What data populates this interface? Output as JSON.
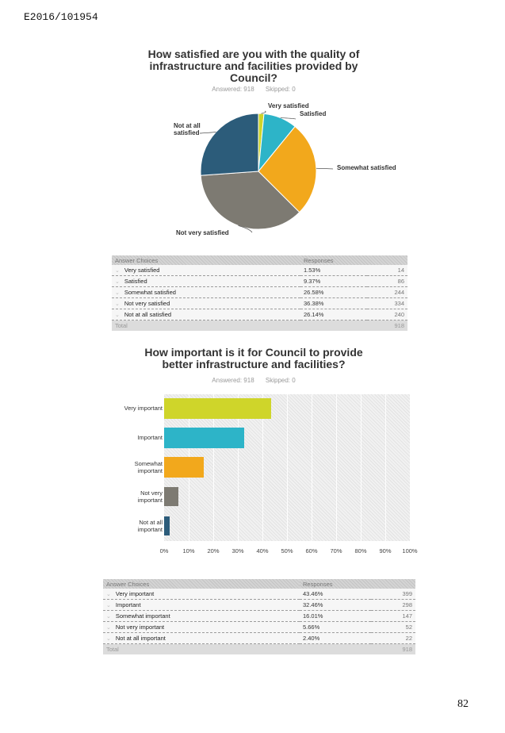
{
  "header": {
    "reference": "E2016/101954"
  },
  "footer": {
    "page_number": "82"
  },
  "q1": {
    "title_lines": [
      "How satisfied are you with the quality of",
      "infrastructure and facilities provided by",
      "Council?"
    ],
    "answered": "Answered: 918",
    "skipped": "Skipped: 0",
    "table": {
      "headers": [
        "Answer Choices",
        "Responses"
      ],
      "rows": [
        {
          "label": "Very satisfied",
          "pct": "1.53%",
          "count": "14"
        },
        {
          "label": "Satisfied",
          "pct": "9.37%",
          "count": "86"
        },
        {
          "label": "Somewhat satisfied",
          "pct": "26.58%",
          "count": "244"
        },
        {
          "label": "Not very satisfied",
          "pct": "36.38%",
          "count": "334"
        },
        {
          "label": "Not at all satisfied",
          "pct": "26.14%",
          "count": "240"
        }
      ],
      "total_label": "Total",
      "total_count": "918"
    }
  },
  "q2": {
    "title_lines": [
      "How important is it for Council to provide",
      "better infrastructure and facilities?"
    ],
    "answered": "Answered: 918",
    "skipped": "Skipped: 0",
    "table": {
      "headers": [
        "Answer Choices",
        "Responses"
      ],
      "rows": [
        {
          "label": "Very important",
          "pct": "43.46%",
          "count": "399"
        },
        {
          "label": "Important",
          "pct": "32.46%",
          "count": "298"
        },
        {
          "label": "Somewhat important",
          "pct": "16.01%",
          "count": "147"
        },
        {
          "label": "Not very important",
          "pct": "5.66%",
          "count": "52"
        },
        {
          "label": "Not at all important",
          "pct": "2.40%",
          "count": "22"
        }
      ],
      "total_label": "Total",
      "total_count": "918"
    }
  },
  "chart_data": [
    {
      "type": "pie",
      "title": "How satisfied are you with the quality of infrastructure and facilities provided by Council?",
      "categories": [
        "Very satisfied",
        "Satisfied",
        "Somewhat satisfied",
        "Not very satisfied",
        "Not at all satisfied"
      ],
      "values": [
        1.53,
        9.37,
        26.58,
        36.38,
        26.14
      ],
      "colors": [
        "#cfd52a",
        "#2db4c8",
        "#f2a81c",
        "#7d7a72",
        "#2c5c7a"
      ]
    },
    {
      "type": "bar",
      "orientation": "horizontal",
      "title": "How important is it for Council to provide better infrastructure and facilities?",
      "categories": [
        "Very important",
        "Important",
        "Somewhat important",
        "Not very important",
        "Not at all important"
      ],
      "category_lines": [
        [
          "Very important"
        ],
        [
          "Important"
        ],
        [
          "Somewhat",
          "important"
        ],
        [
          "Not very",
          "important"
        ],
        [
          "Not at all",
          "important"
        ]
      ],
      "values": [
        43.46,
        32.46,
        16.01,
        5.66,
        2.4
      ],
      "colors": [
        "#cfd52a",
        "#2db4c8",
        "#f2a81c",
        "#7d7a72",
        "#2c5c7a"
      ],
      "xlim": [
        0,
        100
      ],
      "xticks": [
        "0%",
        "10%",
        "20%",
        "30%",
        "40%",
        "50%",
        "60%",
        "70%",
        "80%",
        "90%",
        "100%"
      ]
    }
  ]
}
